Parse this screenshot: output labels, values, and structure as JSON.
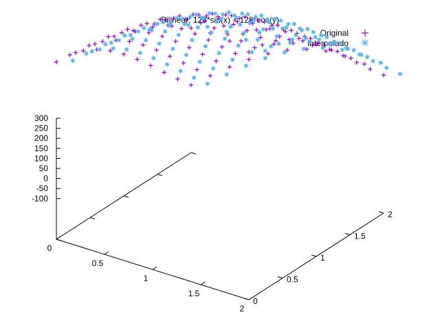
{
  "chart_data": {
    "type": "scatter",
    "title": "Bilinear: 128*sin(x) + 128*cos(y)",
    "xlabel": "",
    "ylabel": "",
    "zlabel": "",
    "xlim": [
      0,
      2
    ],
    "ylim": [
      0,
      2
    ],
    "zlim": [
      -100,
      300
    ],
    "x_ticks": [
      "0",
      "0.5",
      "1",
      "1.5",
      "2"
    ],
    "y_ticks": [
      "0",
      "0.5",
      "1",
      "1.5",
      "2"
    ],
    "z_ticks": [
      "-100",
      "-50",
      "0",
      "50",
      "100",
      "150",
      "200",
      "250",
      "300"
    ],
    "legend_position": "top-right",
    "function": "128*sin(x) + 128*cos(y)",
    "series": [
      {
        "name": "Original",
        "marker": "plus",
        "color": "#9400d3",
        "x": [
          0,
          0.2,
          0.4,
          0.6,
          0.8,
          1.0,
          1.2,
          1.4,
          1.6,
          1.8,
          2.0
        ],
        "y": [
          0,
          0.2,
          0.4,
          0.6,
          0.8,
          1.0,
          1.2,
          1.4,
          1.6,
          1.8,
          2.0
        ],
        "z": [
          [
            128.0,
            153.4,
            177.8,
            200.3,
            219.8,
            235.7,
            247.3,
            254.1,
            255.9,
            252.5,
            244.4
          ],
          [
            125.4,
            150.9,
            175.3,
            197.7,
            217.3,
            233.2,
            244.7,
            251.6,
            253.3,
            250.0,
            241.8
          ],
          [
            117.9,
            143.3,
            167.7,
            190.1,
            209.7,
            225.6,
            237.2,
            244.0,
            245.8,
            242.4,
            234.3
          ],
          [
            105.6,
            131.0,
            155.4,
            177.9,
            197.4,
            213.4,
            224.9,
            231.7,
            233.5,
            230.1,
            222.0
          ],
          [
            89.2,
            114.6,
            139.0,
            161.5,
            181.0,
            196.9,
            208.5,
            215.3,
            217.1,
            213.7,
            205.6
          ],
          [
            69.2,
            94.6,
            119.0,
            141.4,
            161.0,
            176.9,
            188.5,
            195.3,
            197.1,
            193.7,
            185.6
          ],
          [
            46.4,
            71.8,
            96.2,
            118.7,
            138.2,
            154.1,
            165.7,
            172.5,
            174.3,
            170.9,
            162.8
          ],
          [
            21.8,
            47.2,
            71.6,
            94.1,
            113.6,
            129.5,
            141.1,
            147.9,
            149.7,
            146.3,
            138.2
          ],
          [
            -3.7,
            21.7,
            46.1,
            68.5,
            88.1,
            104.0,
            115.6,
            122.4,
            124.2,
            120.8,
            112.7
          ],
          [
            -29.1,
            -3.7,
            20.7,
            43.2,
            62.7,
            78.6,
            90.2,
            97.0,
            98.8,
            95.4,
            87.3
          ],
          [
            -53.3,
            -27.9,
            -3.5,
            19.0,
            38.5,
            54.5,
            66.0,
            72.8,
            74.6,
            71.3,
            63.1
          ]
        ]
      },
      {
        "name": "Interpolado",
        "marker": "star",
        "color": "#56b4e9",
        "x": [
          0,
          0.2,
          0.4,
          0.6,
          0.8,
          1.0,
          1.2,
          1.4,
          1.6,
          1.8,
          2.0
        ],
        "y": [
          0,
          0.2,
          0.4,
          0.6,
          0.8,
          1.0,
          1.2,
          1.4,
          1.6,
          1.8,
          2.0
        ],
        "z": [
          [
            128.0,
            153.4,
            177.8,
            200.3,
            219.8,
            235.7,
            247.3,
            254.1,
            255.9,
            252.5,
            244.4
          ],
          [
            125.4,
            150.9,
            175.3,
            197.7,
            217.3,
            233.2,
            244.7,
            251.6,
            253.3,
            250.0,
            241.8
          ],
          [
            117.9,
            143.3,
            167.7,
            190.1,
            209.7,
            225.6,
            237.2,
            244.0,
            245.8,
            242.4,
            234.3
          ],
          [
            105.6,
            131.0,
            155.4,
            177.9,
            197.4,
            213.4,
            224.9,
            231.7,
            233.5,
            230.1,
            222.0
          ],
          [
            89.2,
            114.6,
            139.0,
            161.5,
            181.0,
            196.9,
            208.5,
            215.3,
            217.1,
            213.7,
            205.6
          ],
          [
            69.2,
            94.6,
            119.0,
            141.4,
            161.0,
            176.9,
            188.5,
            195.3,
            197.1,
            193.7,
            185.6
          ],
          [
            46.4,
            71.8,
            96.2,
            118.7,
            138.2,
            154.1,
            165.7,
            172.5,
            174.3,
            170.9,
            162.8
          ],
          [
            21.8,
            47.2,
            71.6,
            94.1,
            113.6,
            129.5,
            141.1,
            147.9,
            149.7,
            146.3,
            138.2
          ],
          [
            -3.7,
            21.7,
            46.1,
            68.5,
            88.1,
            104.0,
            115.6,
            122.4,
            124.2,
            120.8,
            112.7
          ],
          [
            -29.1,
            -3.7,
            20.7,
            43.2,
            62.7,
            78.6,
            90.2,
            97.0,
            98.8,
            95.4,
            87.3
          ],
          [
            -53.3,
            -27.9,
            -3.5,
            19.0,
            38.5,
            54.5,
            66.0,
            72.8,
            74.6,
            71.3,
            63.1
          ]
        ]
      }
    ]
  }
}
